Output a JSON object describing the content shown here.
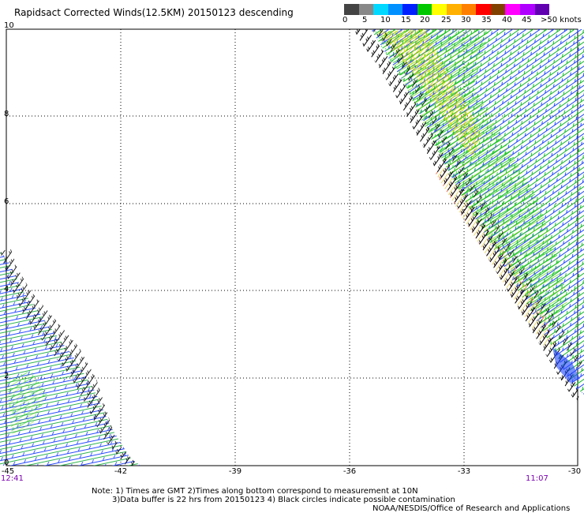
{
  "header": {
    "title": "Rapidsact Corrected Winds(12.5KM) 20150123 descending"
  },
  "legend": {
    "colors": [
      "#444444",
      "#888888",
      "#00d8ff",
      "#0090ff",
      "#0020ff",
      "#00c800",
      "#ffff00",
      "#ffb000",
      "#ff8000",
      "#ff0000",
      "#804000",
      "#ff00ff",
      "#b000ff",
      "#6000b0"
    ],
    "labels": [
      "0",
      "5",
      "10",
      "15",
      "20",
      "25",
      "30",
      "35",
      "40",
      "45",
      ">50 knots"
    ]
  },
  "axes": {
    "x_labels": [
      "-45",
      "-42",
      "-39",
      "-36",
      "-33",
      "-30"
    ],
    "y_labels": [
      "10",
      "8",
      "6",
      "4",
      "2",
      "0"
    ]
  },
  "times": {
    "left": "12:41",
    "right": "11:07"
  },
  "notes": {
    "line1": "Note: 1) Times are GMT 2)Times along bottom correspond to measurement at 10N",
    "line2": "3)Data buffer is 22 hrs from 20150123 4) Black circles indicate possible contamination",
    "credit": "NOAA/NESDIS/Office of Research and Applications"
  }
}
